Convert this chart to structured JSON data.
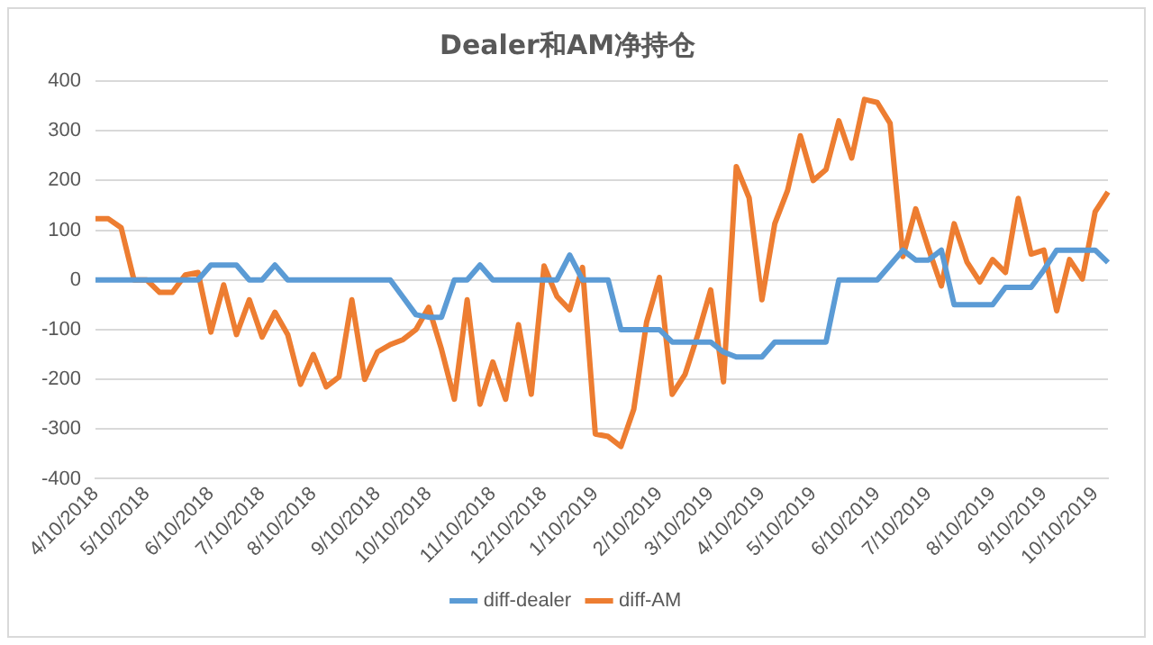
{
  "chart_data": {
    "type": "line",
    "title": "Dealer和AM净持仓",
    "categories": [
      "4/10/2018",
      null,
      null,
      null,
      "5/10/2018",
      null,
      null,
      null,
      null,
      "6/10/2018",
      null,
      null,
      null,
      "7/10/2018",
      null,
      null,
      null,
      "8/10/2018",
      null,
      null,
      null,
      null,
      "9/10/2018",
      null,
      null,
      null,
      "10/10/2018",
      null,
      null,
      null,
      null,
      "11/10/2018",
      null,
      null,
      null,
      "12/10/2018",
      null,
      null,
      null,
      "1/10/2019",
      null,
      null,
      null,
      null,
      "2/10/2019",
      null,
      null,
      null,
      "3/10/2019",
      null,
      null,
      null,
      "4/10/2019",
      null,
      null,
      null,
      "5/10/2019",
      null,
      null,
      null,
      null,
      "6/10/2019",
      null,
      null,
      null,
      "7/10/2019",
      null,
      null,
      null,
      null,
      "8/10/2019",
      null,
      null,
      null,
      "9/10/2019",
      null,
      null,
      null,
      "10/10/2019",
      null
    ],
    "series": [
      {
        "name": "diff-dealer",
        "color": "#5b9bd5",
        "values": [
          0,
          0,
          0,
          0,
          0,
          0,
          0,
          0,
          0,
          30,
          30,
          30,
          0,
          0,
          30,
          0,
          0,
          0,
          0,
          0,
          0,
          0,
          0,
          0,
          -35,
          -70,
          -75,
          -75,
          0,
          0,
          30,
          0,
          0,
          0,
          0,
          0,
          0,
          50,
          0,
          0,
          0,
          -100,
          -100,
          -100,
          -100,
          -125,
          -125,
          -125,
          -125,
          -145,
          -155,
          -155,
          -155,
          -125,
          -125,
          -125,
          -125,
          -125,
          0,
          0,
          0,
          0,
          30,
          60,
          40,
          40,
          60,
          -50,
          -50,
          -50,
          -50,
          -15,
          -15,
          -15,
          20,
          60,
          60,
          60,
          60,
          35
        ]
      },
      {
        "name": "diff-AM",
        "color": "#ed7d31",
        "values": [
          123,
          123,
          105,
          0,
          0,
          -25,
          -25,
          10,
          15,
          -105,
          -10,
          -110,
          -40,
          -115,
          -65,
          -110,
          -210,
          -150,
          -215,
          -195,
          -40,
          -200,
          -145,
          -130,
          -120,
          -100,
          -55,
          -140,
          -240,
          -40,
          -250,
          -165,
          -240,
          -90,
          -230,
          28,
          -33,
          -60,
          25,
          -310,
          -315,
          -335,
          -260,
          -85,
          5,
          -230,
          -190,
          -110,
          -20,
          -205,
          228,
          165,
          -40,
          113,
          180,
          290,
          200,
          222,
          320,
          245,
          363,
          357,
          315,
          47,
          143,
          63,
          -12,
          113,
          36,
          -4,
          41,
          15,
          164,
          52,
          60,
          -62,
          41,
          2,
          137,
          177
        ]
      }
    ],
    "ylim": [
      -400,
      400
    ],
    "yticks": [
      -400,
      -300,
      -200,
      -100,
      0,
      100,
      200,
      300,
      400
    ],
    "grid": "y",
    "legend": "bottom",
    "marker": "none",
    "line_style": "solid"
  }
}
